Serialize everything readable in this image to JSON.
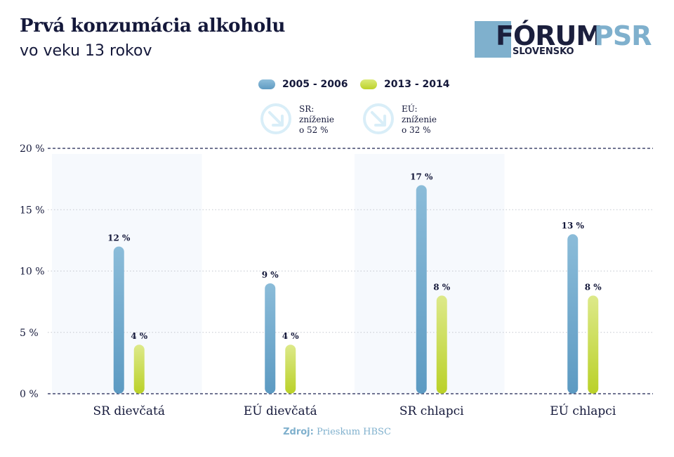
{
  "header": {
    "title": "Prvá konzumácia alkoholu",
    "subtitle": "vo veku 13 rokov"
  },
  "logo": {
    "main": "FÓRUM",
    "accent": "PSR",
    "sub": "SLOVENSKO"
  },
  "legend": [
    {
      "label": "2005 - 2006",
      "color": "#78add0"
    },
    {
      "label": "2013 - 2014",
      "color": "#c9dd3c"
    }
  ],
  "notes": [
    {
      "text": "SR:\nzníženie\no 52 %",
      "icon": "arrow-down-right-icon"
    },
    {
      "text": "EÚ:\nzníženie\no 32 %",
      "icon": "arrow-down-right-icon"
    }
  ],
  "source": {
    "label": "Zdroj:",
    "text": "Prieskum HBSC"
  },
  "chart_data": {
    "type": "bar",
    "categories": [
      "SR dievčatá",
      "EÚ dievčatá",
      "SR chlapci",
      "EÚ chlapci"
    ],
    "series": [
      {
        "name": "2005 - 2006",
        "values": [
          12,
          9,
          17,
          13
        ],
        "color": "#78add0"
      },
      {
        "name": "2013 - 2014",
        "values": [
          4,
          4,
          8,
          8
        ],
        "color": "#c9dd3c"
      }
    ],
    "value_suffix": " %",
    "ylim": [
      0,
      20
    ],
    "yticks": [
      0,
      5,
      10,
      15,
      20
    ],
    "ytick_labels": [
      "0 %",
      "5 %",
      "10 %",
      "15 %",
      "20 %"
    ],
    "grid": true,
    "highlighted_categories": [
      "SR dievčatá",
      "SR chlapci"
    ],
    "legend_position": "top"
  }
}
